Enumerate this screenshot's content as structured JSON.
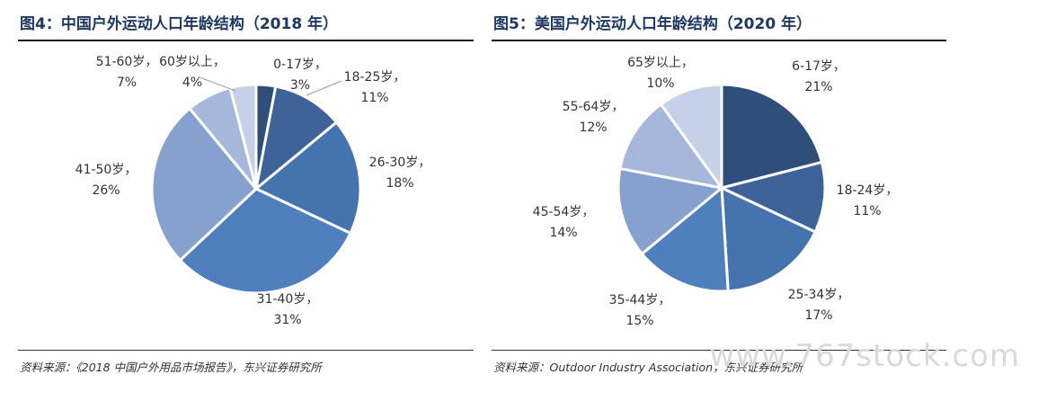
{
  "left_panel": {
    "title": "图4：中国户外运动人口年龄结构（2018 年）",
    "source": "资料来源：《2018 中国户外用品市场报告》，东兴证券研究所"
  },
  "right_panel": {
    "title": "图5：美国户外运动人口年龄结构（2020 年）",
    "source": "资料来源：Outdoor Industry Association，东兴证券研究所"
  },
  "watermark": "www.767stock.com",
  "colors": {
    "title": "#1f3864",
    "slices": [
      "#2f4f7a",
      "#3d6399",
      "#4573ad",
      "#4f80bd",
      "#86a1cd",
      "#a5b8db",
      "#c5d1e6"
    ],
    "edge": "#ffffff",
    "leader": "#999999"
  },
  "chart_data": [
    {
      "type": "pie",
      "title": "图4：中国户外运动人口年龄结构（2018 年）",
      "slices": [
        {
          "label": "0-17岁",
          "value": 3,
          "text": "3%"
        },
        {
          "label": "18-25岁",
          "value": 11,
          "text": "11%"
        },
        {
          "label": "26-30岁",
          "value": 18,
          "text": "18%"
        },
        {
          "label": "31-40岁",
          "value": 31,
          "text": "31%"
        },
        {
          "label": "41-50岁",
          "value": 26,
          "text": "26%"
        },
        {
          "label": "51-60岁",
          "value": 7,
          "text": "7%"
        },
        {
          "label": "60岁以上",
          "value": 4,
          "text": "4%"
        }
      ]
    },
    {
      "type": "pie",
      "title": "图5：美国户外运动人口年龄结构（2020 年）",
      "slices": [
        {
          "label": "6-17岁",
          "value": 21,
          "text": "21%"
        },
        {
          "label": "18-24岁",
          "value": 11,
          "text": "11%"
        },
        {
          "label": "25-34岁",
          "value": 17,
          "text": "17%"
        },
        {
          "label": "35-44岁",
          "value": 15,
          "text": "15%"
        },
        {
          "label": "45-54岁",
          "value": 14,
          "text": "14%"
        },
        {
          "label": "55-64岁",
          "value": 12,
          "text": "12%"
        },
        {
          "label": "65岁以上",
          "value": 10,
          "text": "10%"
        }
      ]
    }
  ]
}
